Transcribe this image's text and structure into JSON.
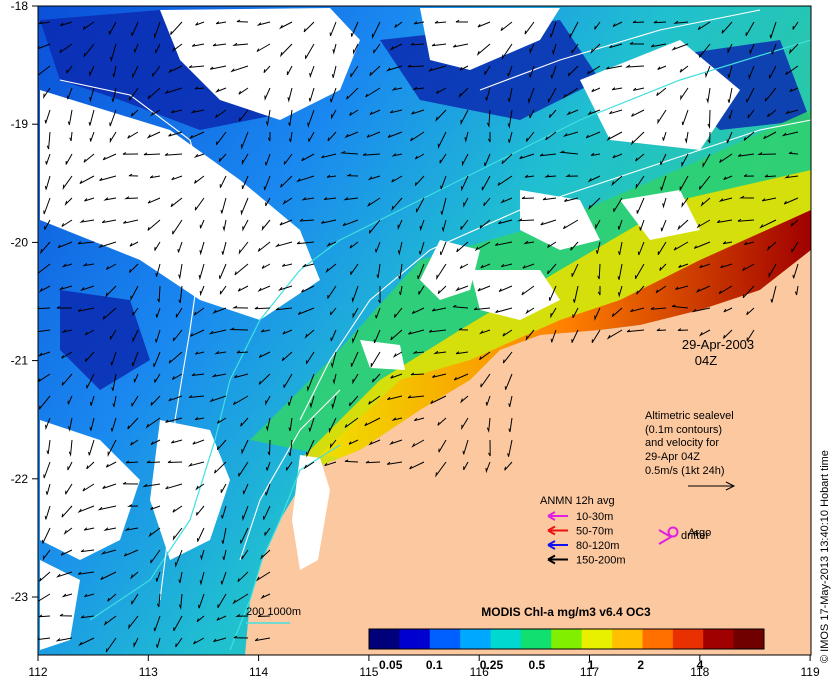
{
  "map": {
    "date_line": "29-Apr-2003",
    "time_line": "04Z",
    "credit": "© IMOS 17-May-2013 13:40:10 Hobart time"
  },
  "axes": {
    "x_ticks": [
      "112",
      "113",
      "114",
      "115",
      "116",
      "117",
      "118",
      "119"
    ],
    "y_ticks": [
      "-18",
      "-19",
      "-20",
      "-21",
      "-22",
      "-23"
    ]
  },
  "altimetry_note": {
    "lines": [
      "Altimetric sealevel",
      "(0.1m contours)",
      "and velocity for",
      "29-Apr 04Z",
      "0.5m/s (1kt 24h)"
    ]
  },
  "anmn_legend": {
    "title": "ANMN 12h avg",
    "items": [
      {
        "label": "10-30m",
        "color": "#e020e0"
      },
      {
        "label": "50-70m",
        "color": "#ee1111"
      },
      {
        "label": "80-120m",
        "color": "#1111ee"
      },
      {
        "label": "150-200m",
        "color": "#000000"
      }
    ]
  },
  "markers": {
    "argo_label": "Argo",
    "drifter_label": "drifter",
    "marker_color": "#e020e0"
  },
  "colorbar": {
    "title": "MODIS Chl-a mg/m3 v6.4 OC3",
    "tick_labels": [
      "0.05",
      "0.1",
      "0.25",
      "0.5",
      "1",
      "2",
      "4"
    ],
    "colors": [
      "#00007a",
      "#0000d0",
      "#0060ff",
      "#00a8ff",
      "#00d8d0",
      "#10e070",
      "#80f000",
      "#e8f000",
      "#ffc000",
      "#ff7000",
      "#e83000",
      "#a00000",
      "#700000"
    ]
  },
  "scale": {
    "label": "200  1000m"
  },
  "colors": {
    "land": "#fbc8a0",
    "cloud": "#ffffff",
    "contour": "#ffffff",
    "isobath": "#40e0e0",
    "frame": "#000000"
  }
}
